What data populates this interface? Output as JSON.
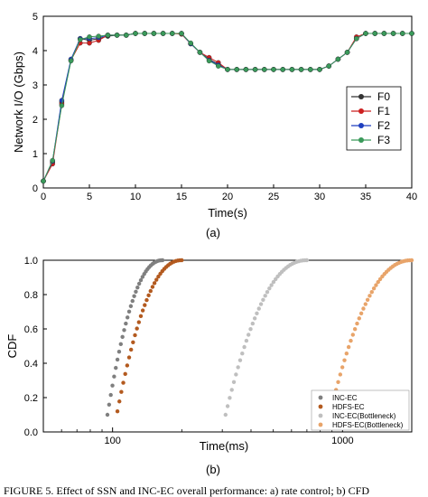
{
  "chart_data": [
    {
      "type": "line",
      "xlabel": "Time(s)",
      "ylabel": "Network I/O (Gbps)",
      "caption": "(a)",
      "xlim": [
        0,
        40
      ],
      "ylim": [
        0,
        5
      ],
      "xticks": [
        "0",
        "5",
        "10",
        "15",
        "20",
        "25",
        "30",
        "35",
        "40"
      ],
      "yticks": [
        "0",
        "1",
        "2",
        "3",
        "4",
        "5"
      ],
      "legend_position": "right",
      "grid": false,
      "x": [
        0,
        1,
        2,
        3,
        4,
        5,
        6,
        7,
        8,
        9,
        10,
        11,
        12,
        13,
        14,
        15,
        16,
        17,
        18,
        19,
        20,
        21,
        22,
        23,
        24,
        25,
        26,
        27,
        28,
        29,
        30,
        31,
        32,
        33,
        34,
        35,
        36,
        37,
        38,
        39,
        40
      ],
      "series": [
        {
          "name": "F0",
          "color": "#333333",
          "values": [
            0.2,
            0.75,
            2.5,
            3.72,
            4.35,
            4.3,
            4.35,
            4.42,
            4.45,
            4.45,
            4.5,
            4.5,
            4.5,
            4.5,
            4.5,
            4.5,
            4.2,
            3.95,
            3.75,
            3.6,
            3.45,
            3.45,
            3.45,
            3.45,
            3.45,
            3.45,
            3.45,
            3.45,
            3.45,
            3.45,
            3.45,
            3.55,
            3.75,
            3.95,
            4.35,
            4.5,
            4.5,
            4.5,
            4.5,
            4.5,
            4.5
          ]
        },
        {
          "name": "F1",
          "color": "#cc1f1f",
          "values": [
            0.2,
            0.7,
            2.45,
            3.72,
            4.22,
            4.22,
            4.3,
            4.45,
            4.45,
            4.45,
            4.5,
            4.5,
            4.5,
            4.5,
            4.5,
            4.48,
            4.2,
            3.95,
            3.8,
            3.65,
            3.45,
            3.45,
            3.45,
            3.45,
            3.45,
            3.45,
            3.45,
            3.45,
            3.45,
            3.45,
            3.45,
            3.55,
            3.75,
            3.95,
            4.4,
            4.5,
            4.5,
            4.5,
            4.5,
            4.5,
            4.5
          ]
        },
        {
          "name": "F2",
          "color": "#1f3fbf",
          "values": [
            0.2,
            0.78,
            2.55,
            3.75,
            4.35,
            4.35,
            4.38,
            4.45,
            4.45,
            4.45,
            4.5,
            4.5,
            4.5,
            4.5,
            4.5,
            4.5,
            4.2,
            3.95,
            3.72,
            3.58,
            3.45,
            3.45,
            3.45,
            3.45,
            3.45,
            3.45,
            3.45,
            3.45,
            3.45,
            3.45,
            3.45,
            3.55,
            3.75,
            3.95,
            4.35,
            4.5,
            4.5,
            4.5,
            4.5,
            4.5,
            4.5
          ]
        },
        {
          "name": "F3",
          "color": "#3a9a5a",
          "values": [
            0.2,
            0.8,
            2.4,
            3.7,
            4.32,
            4.4,
            4.42,
            4.45,
            4.45,
            4.45,
            4.5,
            4.5,
            4.5,
            4.5,
            4.5,
            4.5,
            4.22,
            3.95,
            3.7,
            3.55,
            3.45,
            3.45,
            3.45,
            3.45,
            3.45,
            3.45,
            3.45,
            3.45,
            3.45,
            3.45,
            3.45,
            3.55,
            3.75,
            3.95,
            4.35,
            4.5,
            4.5,
            4.5,
            4.5,
            4.5,
            4.5
          ]
        }
      ]
    },
    {
      "type": "scatter",
      "xlabel": "Time(ms)",
      "ylabel": "CDF",
      "caption": "(b)",
      "xscale": "log",
      "xlim": [
        50,
        2000
      ],
      "ylim": [
        0,
        1
      ],
      "xticks": [
        "100",
        "1000"
      ],
      "yticks": [
        "0.0",
        "0.2",
        "0.4",
        "0.6",
        "0.8",
        "1.0"
      ],
      "legend_position": "bottom-right",
      "grid": false,
      "series": [
        {
          "name": "INC-EC",
          "color": "#7f7f7f",
          "x_range": [
            95,
            165
          ],
          "y_range": [
            0.1,
            1.0
          ],
          "points": 34
        },
        {
          "name": "HDFS-EC",
          "color": "#b35a1f",
          "x_range": [
            105,
            200
          ],
          "y_range": [
            0.12,
            1.0
          ],
          "points": 34
        },
        {
          "name": "INC-EC(Bottleneck)",
          "color": "#bfbfbf",
          "x_range": [
            310,
            700
          ],
          "y_range": [
            0.1,
            1.0
          ],
          "points": 40
        },
        {
          "name": "HDFS-EC(Bottleneck)",
          "color": "#e8a46a",
          "x_range": [
            880,
            2000
          ],
          "y_range": [
            0.1,
            1.0
          ],
          "points": 40
        }
      ]
    }
  ],
  "caption_text": "FIGURE 5. Effect of SSN and INC-EC overall performance: a) rate control; b) CFD"
}
